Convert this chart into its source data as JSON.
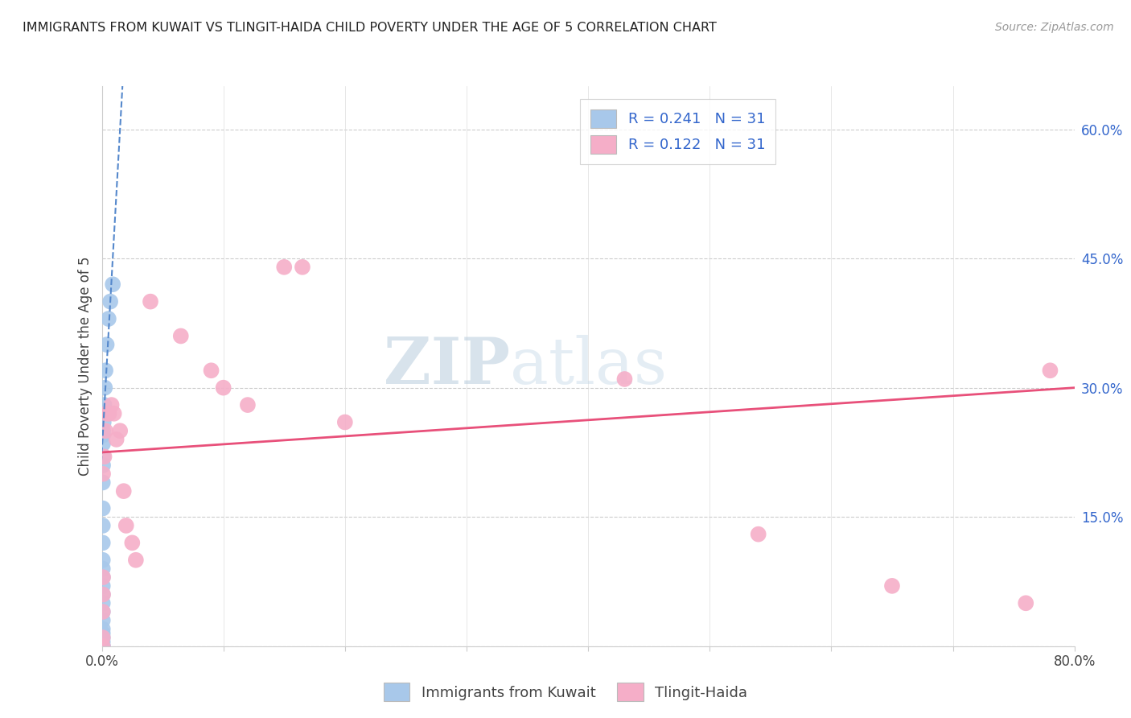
{
  "title": "IMMIGRANTS FROM KUWAIT VS TLINGIT-HAIDA CHILD POVERTY UNDER THE AGE OF 5 CORRELATION CHART",
  "source": "Source: ZipAtlas.com",
  "ylabel": "Child Poverty Under the Age of 5",
  "xlim": [
    0,
    0.8
  ],
  "ylim": [
    0,
    0.65
  ],
  "xticks": [
    0.0,
    0.1,
    0.2,
    0.3,
    0.4,
    0.5,
    0.6,
    0.7,
    0.8
  ],
  "yticks_right": [
    0.0,
    0.15,
    0.3,
    0.45,
    0.6
  ],
  "ytick_labels_right": [
    "",
    "15.0%",
    "30.0%",
    "45.0%",
    "60.0%"
  ],
  "blue_color": "#a8c8ea",
  "pink_color": "#f5aec8",
  "trend_blue_color": "#5588cc",
  "trend_pink_color": "#e8507a",
  "watermark_zip": "ZIP",
  "watermark_atlas": "atlas",
  "kuwait_x": [
    0.0008,
    0.0008,
    0.0008,
    0.0008,
    0.0008,
    0.0008,
    0.0008,
    0.0008,
    0.0008,
    0.0008,
    0.0008,
    0.0008,
    0.0008,
    0.0008,
    0.0008,
    0.0008,
    0.0008,
    0.0008,
    0.001,
    0.001,
    0.001,
    0.001,
    0.001,
    0.0015,
    0.002,
    0.0025,
    0.003,
    0.004,
    0.0055,
    0.007,
    0.009
  ],
  "kuwait_y": [
    0.0,
    0.0,
    0.005,
    0.01,
    0.015,
    0.02,
    0.03,
    0.04,
    0.05,
    0.06,
    0.07,
    0.08,
    0.09,
    0.1,
    0.12,
    0.14,
    0.16,
    0.19,
    0.21,
    0.22,
    0.235,
    0.245,
    0.25,
    0.26,
    0.28,
    0.3,
    0.32,
    0.35,
    0.38,
    0.4,
    0.42
  ],
  "tlingit_x": [
    0.0008,
    0.0008,
    0.0008,
    0.001,
    0.001,
    0.001,
    0.002,
    0.003,
    0.004,
    0.006,
    0.008,
    0.01,
    0.012,
    0.015,
    0.018,
    0.02,
    0.025,
    0.028,
    0.04,
    0.065,
    0.09,
    0.1,
    0.12,
    0.15,
    0.165,
    0.2,
    0.43,
    0.54,
    0.65,
    0.76,
    0.78
  ],
  "tlingit_y": [
    0.0,
    0.01,
    0.04,
    0.06,
    0.08,
    0.2,
    0.22,
    0.25,
    0.27,
    0.27,
    0.28,
    0.27,
    0.24,
    0.25,
    0.18,
    0.14,
    0.12,
    0.1,
    0.4,
    0.36,
    0.32,
    0.3,
    0.28,
    0.44,
    0.44,
    0.26,
    0.31,
    0.13,
    0.07,
    0.05,
    0.32
  ],
  "blue_trend_x": [
    -0.005,
    0.017
  ],
  "blue_trend_y": [
    0.1,
    0.65
  ],
  "pink_trend_x": [
    0.0,
    0.8
  ],
  "pink_trend_y": [
    0.225,
    0.3
  ]
}
